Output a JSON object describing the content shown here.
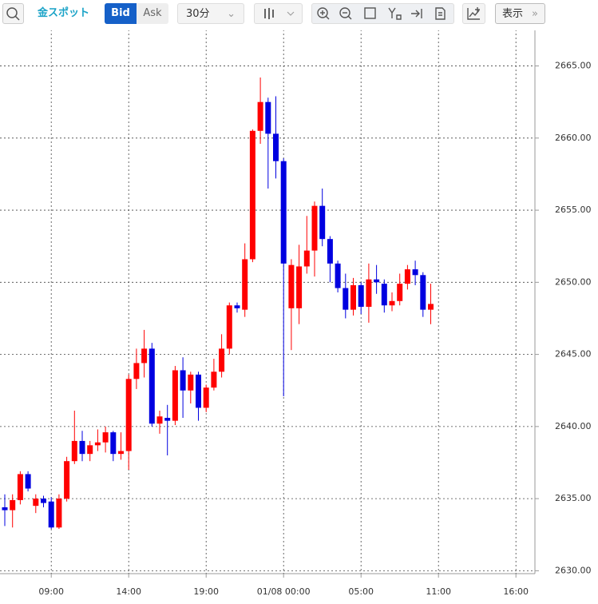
{
  "toolbar": {
    "symbol": "金スポット",
    "bid": "Bid",
    "ask": "Ask",
    "interval": "30分",
    "display": "表示"
  },
  "chart_data": {
    "type": "candlestick",
    "categories": [
      null,
      null,
      null,
      null,
      null,
      null,
      "09:00",
      null,
      null,
      null,
      null,
      null,
      null,
      null,
      null,
      null,
      "14:00",
      null,
      null,
      null,
      null,
      null,
      null,
      null,
      null,
      null,
      "19:00",
      null,
      null,
      null,
      null,
      null,
      null,
      null,
      null,
      null,
      "01/08 00:00",
      null,
      null,
      null,
      null,
      null,
      null,
      null,
      null,
      null,
      "05:00",
      null,
      null,
      null,
      null,
      null,
      null,
      null,
      null,
      null,
      "11:00",
      null,
      null,
      null,
      null,
      null,
      null,
      null,
      null,
      null,
      "16:00"
    ],
    "open": [
      2634.4,
      2634.2,
      2634.9,
      2636.7,
      2634.5,
      2635.0,
      2634.8,
      2633.0,
      2635.0,
      2637.6,
      2639.0,
      2638.1,
      2638.7,
      2638.9,
      2639.6,
      2638.1,
      2638.3,
      2643.3,
      2644.4,
      2645.4,
      2640.2,
      2640.6,
      2640.4,
      2643.9,
      2642.5,
      2643.6,
      2641.3,
      2642.7,
      2643.8,
      2645.4,
      2648.4,
      2648.1,
      2651.6,
      2660.5,
      2662.5,
      2660.3,
      2658.4,
      2648.2,
      2648.2,
      2651.1,
      2652.2,
      2655.3,
      2653.0,
      2651.3,
      2649.6,
      2648.1,
      2649.8,
      2648.3,
      2650.2,
      2649.9,
      2648.4,
      2648.7,
      2649.9,
      2650.9,
      2650.5,
      2648.1,
      null,
      null,
      null,
      null,
      null,
      null,
      null,
      null,
      null,
      null,
      null
    ],
    "high": [
      2635.3,
      2635.3,
      2636.9,
      2636.9,
      2635.3,
      2635.2,
      2635.1,
      2635.3,
      2637.9,
      2641.1,
      2639.7,
      2639.0,
      2639.8,
      2640.0,
      2639.7,
      2639.6,
      2643.6,
      2645.4,
      2646.7,
      2645.8,
      2641.1,
      2641.5,
      2644.2,
      2644.8,
      2643.8,
      2643.8,
      2642.9,
      2644.7,
      2646.4,
      2648.6,
      2648.6,
      2652.7,
      2660.6,
      2664.2,
      2662.8,
      2662.9,
      2658.6,
      2651.6,
      2652.6,
      2654.6,
      2655.6,
      2656.5,
      2653.2,
      2651.5,
      2650.6,
      2650.3,
      2650.0,
      2651.3,
      2651.2,
      2650.2,
      2649.3,
      2650.6,
      2651.2,
      2651.5,
      2650.7,
      2649.9,
      null,
      null,
      null,
      null,
      null,
      null,
      null,
      null,
      null,
      null,
      null
    ],
    "low": [
      2633.1,
      2633.0,
      2634.6,
      2635.5,
      2634.0,
      2634.4,
      2632.9,
      2632.9,
      2634.8,
      2637.4,
      2637.6,
      2637.6,
      2638.3,
      2638.2,
      2637.6,
      2637.7,
      2637.0,
      2642.6,
      2643.4,
      2640.0,
      2639.5,
      2638.0,
      2640.1,
      2640.6,
      2641.6,
      2640.4,
      2641.0,
      2642.5,
      2643.4,
      2645.0,
      2647.9,
      2647.6,
      2651.4,
      2659.6,
      2656.5,
      2657.2,
      2642.1,
      2645.3,
      2647.1,
      2650.6,
      2650.4,
      2652.5,
      2650.0,
      2649.3,
      2647.5,
      2647.7,
      2647.8,
      2647.2,
      2649.2,
      2647.9,
      2648.0,
      2648.4,
      2649.5,
      2649.8,
      2647.6,
      2647.1,
      null,
      null,
      null,
      null,
      null,
      null,
      null,
      null,
      null,
      null,
      null
    ],
    "close": [
      2634.2,
      2634.9,
      2636.7,
      2635.7,
      2635.0,
      2634.7,
      2633.0,
      2635.0,
      2637.6,
      2639.0,
      2638.1,
      2638.7,
      2638.9,
      2639.6,
      2638.1,
      2638.3,
      2643.3,
      2644.4,
      2645.4,
      2640.2,
      2640.7,
      2640.4,
      2643.9,
      2642.5,
      2643.6,
      2641.3,
      2642.7,
      2643.8,
      2645.4,
      2648.4,
      2648.2,
      2651.6,
      2660.5,
      2662.5,
      2660.3,
      2658.4,
      2651.3,
      2651.2,
      2651.1,
      2652.2,
      2655.3,
      2653.0,
      2651.3,
      2649.6,
      2648.1,
      2649.8,
      2648.3,
      2650.2,
      2650.0,
      2648.4,
      2648.7,
      2649.9,
      2650.9,
      2650.5,
      2648.1,
      2648.5,
      null,
      null,
      null,
      null,
      null,
      null,
      null,
      null,
      null,
      null,
      null
    ],
    "up_color": "#ff0000",
    "down_color": "#0000e0",
    "ylim": [
      2629.8,
      2667.8
    ],
    "yticks": [
      {
        "value": 2630,
        "label": "2630.00"
      },
      {
        "value": 2635,
        "label": "2635.00"
      },
      {
        "value": 2640,
        "label": "2640.00"
      },
      {
        "value": 2645,
        "label": "2645.00"
      },
      {
        "value": 2650,
        "label": "2650.00"
      },
      {
        "value": 2655,
        "label": "2655.00"
      },
      {
        "value": 2660,
        "label": "2660.00"
      },
      {
        "value": 2665,
        "label": "2665.00"
      }
    ],
    "grid": true
  }
}
